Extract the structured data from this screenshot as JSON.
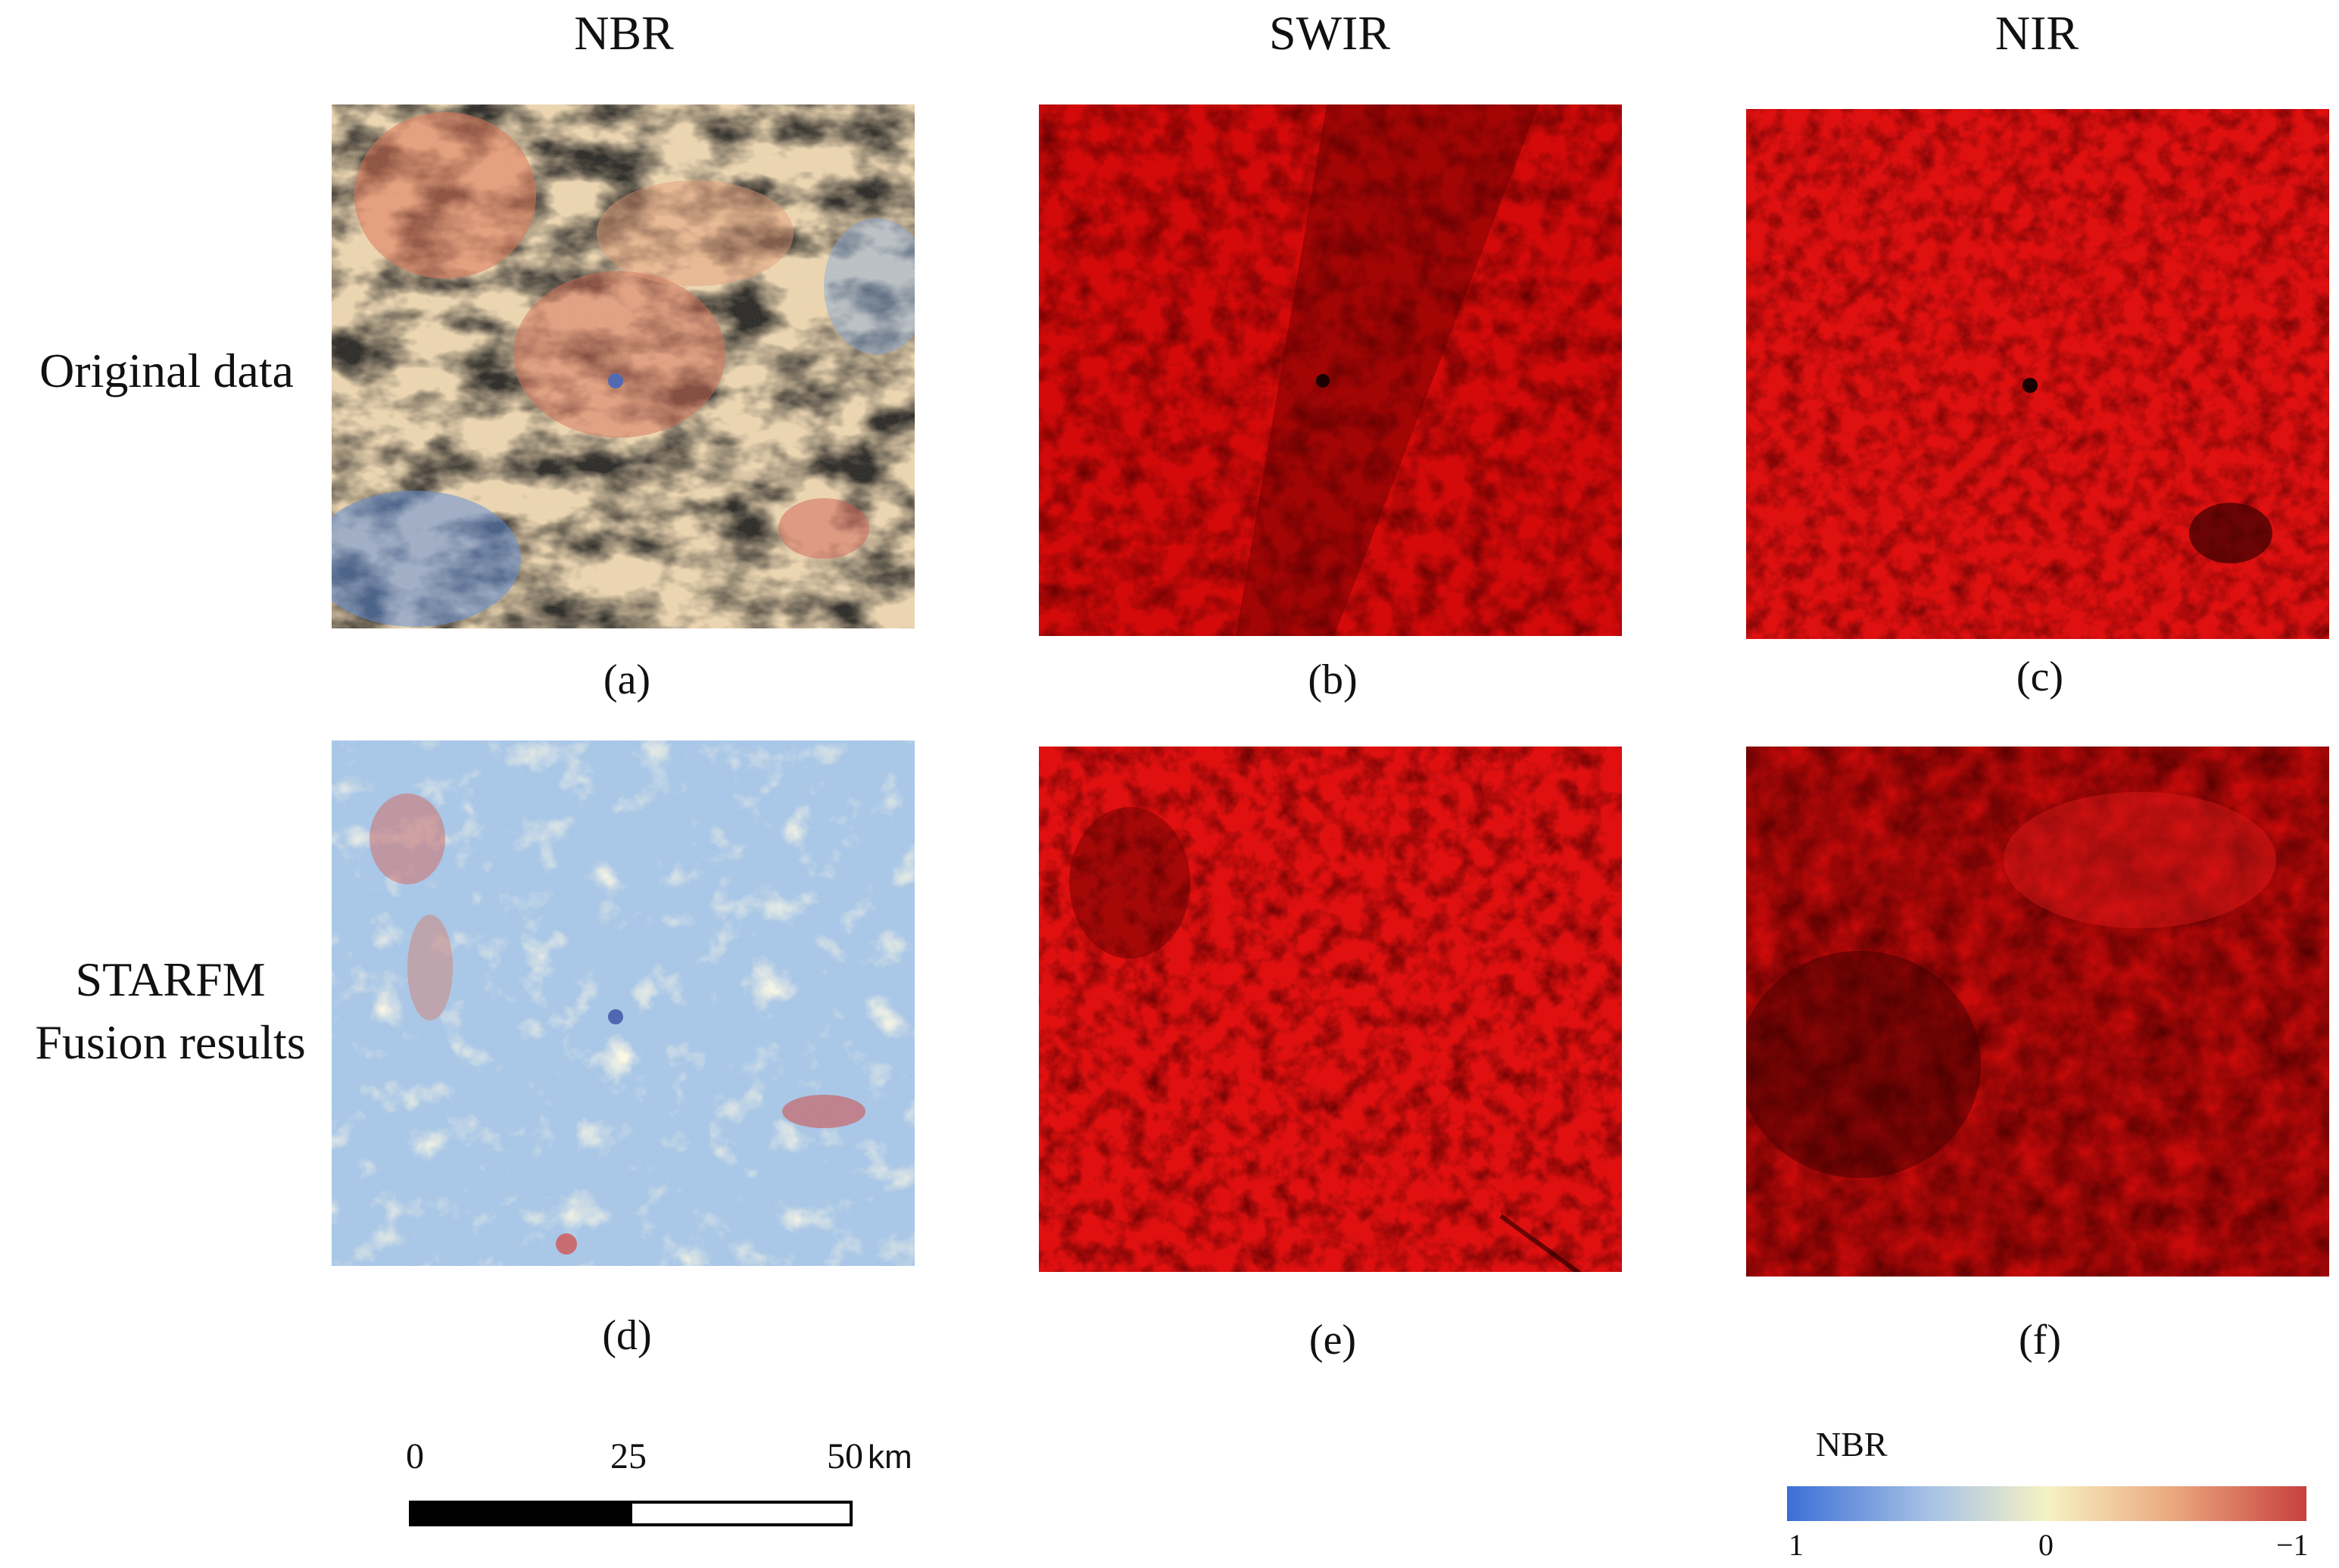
{
  "columns": {
    "nbr": "NBR",
    "swir": "SWIR",
    "nir": "NIR"
  },
  "rows": {
    "original": "Original data",
    "starfm_line1": "STARFM",
    "starfm_line2": "Fusion results"
  },
  "panels": {
    "a": "(a)",
    "b": "(b)",
    "c": "(c)",
    "d": "(d)",
    "e": "(e)",
    "f": "(f)"
  },
  "scalebar": {
    "tick0": "0",
    "tick1": "25",
    "tick2": "50",
    "unit": "km"
  },
  "legend": {
    "title": "NBR",
    "min_label": "1",
    "mid_label": "0",
    "max_label": "−1"
  },
  "colors": {
    "nbr_low": "#3b6fd6",
    "nbr_mid": "#f5f2c4",
    "nbr_high": "#c8403e",
    "band_red": "#d40a0a",
    "band_dark": "#3a0000"
  }
}
